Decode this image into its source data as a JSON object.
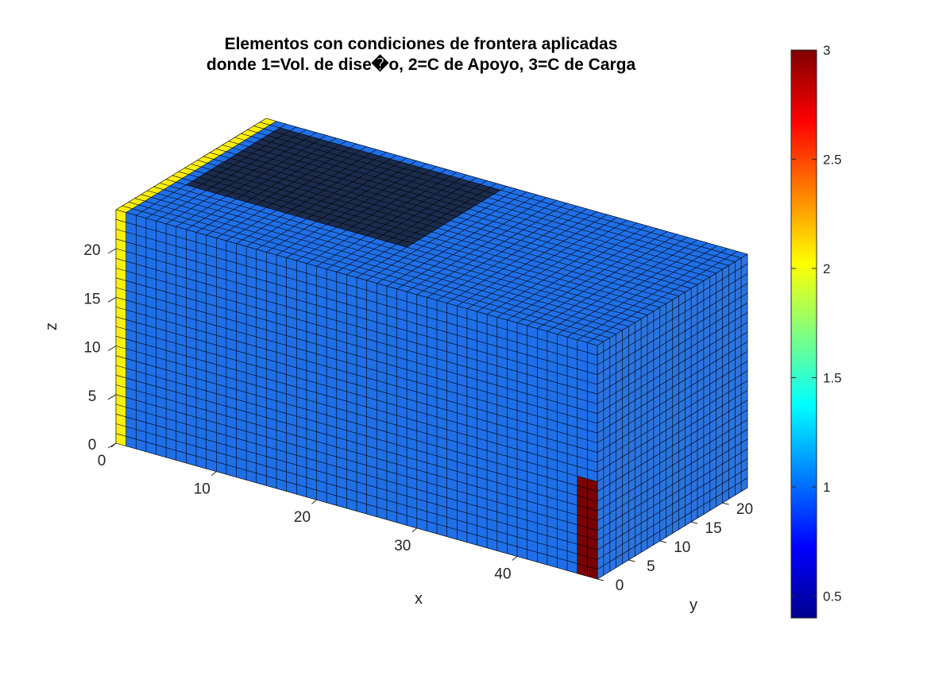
{
  "chart_data": {
    "type": "voxel3d",
    "title": [
      "Elementos con condiciones de frontera aplicadas",
      "donde 1=Vol. de dise�o, 2=C de Apoyo, 3=C de Carga"
    ],
    "xlabel": "x",
    "ylabel": "y",
    "zlabel": "z",
    "x_ticks": [
      "0",
      "10",
      "20",
      "30",
      "40"
    ],
    "y_ticks": [
      "0",
      "5",
      "10",
      "15",
      "20"
    ],
    "z_ticks": [
      "0",
      "5",
      "10",
      "15",
      "20"
    ],
    "xlim": [
      0,
      48
    ],
    "ylim": [
      0,
      24
    ],
    "zlim": [
      0,
      24
    ],
    "grid": true,
    "box_extent": {
      "x": [
        1,
        48
      ],
      "y": [
        0,
        24
      ],
      "z": [
        0,
        24
      ]
    },
    "regions": [
      {
        "value": 1,
        "description": "Vol. de diseño",
        "color": "#1f6fe8"
      },
      {
        "value": 2,
        "description": "C de Apoyo",
        "color": "#ffef0e",
        "location": "x = 1 end face"
      },
      {
        "value": 3,
        "description": "C de Carga",
        "color": "#7a0000",
        "location": "x = 48, y = 24 edge column"
      }
    ],
    "colorbar": {
      "range": [
        0.4,
        3
      ],
      "ticks": [
        "0.5",
        "1",
        "1.5",
        "2",
        "2.5",
        "3"
      ],
      "tick_values": [
        0.5,
        1,
        1.5,
        2,
        2.5,
        3
      ],
      "colormap": "jet"
    }
  }
}
